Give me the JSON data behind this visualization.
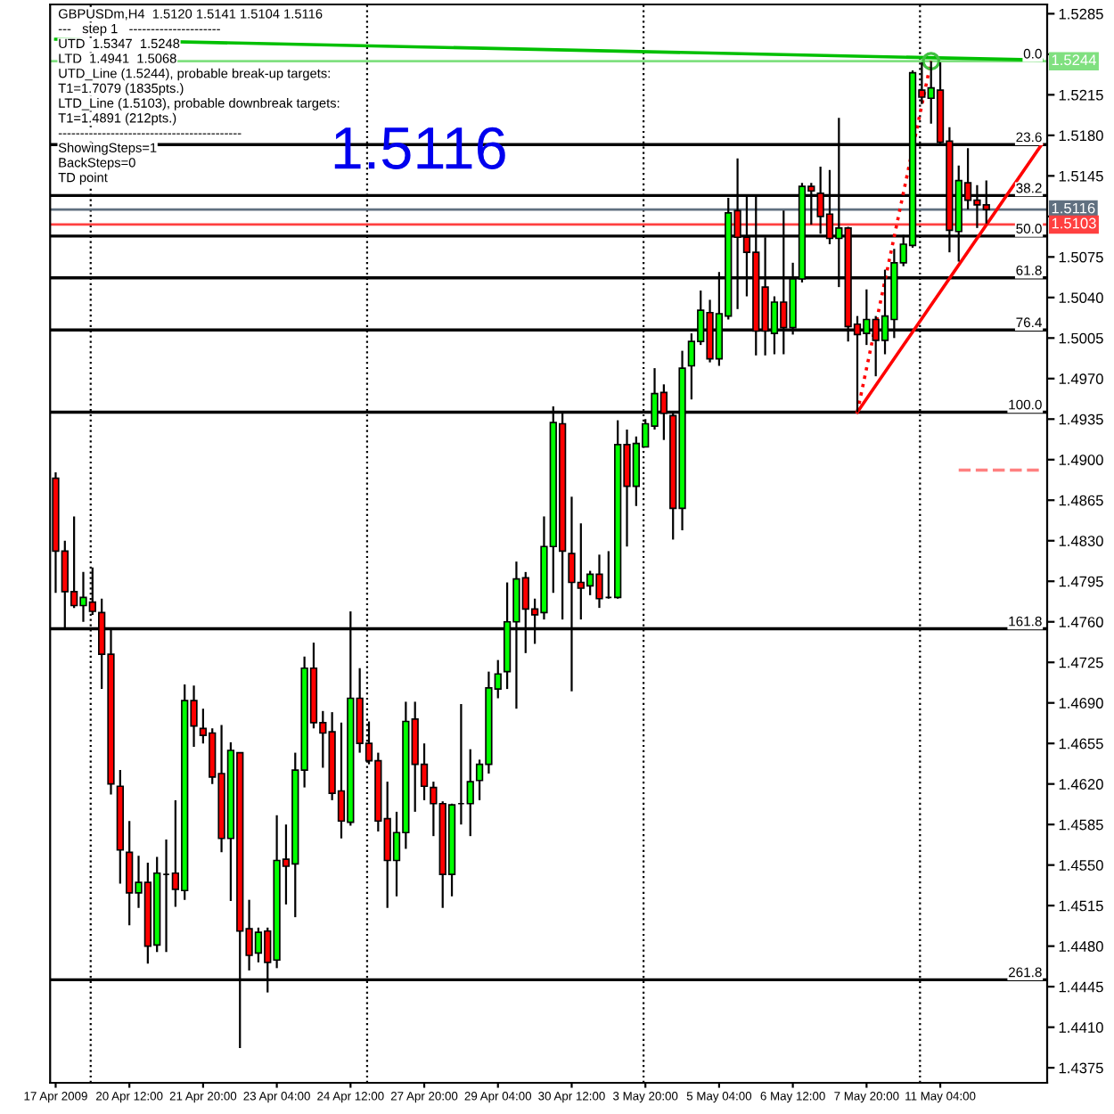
{
  "chart_data": {
    "type": "candlestick",
    "categories": [
      "17 Apr 2009",
      null,
      null,
      null,
      null,
      null,
      null,
      null,
      "20 Apr 12:00",
      null,
      null,
      null,
      null,
      null,
      null,
      null,
      "21 Apr 20:00",
      null,
      null,
      null,
      null,
      null,
      null,
      null,
      "23 Apr 04:00",
      null,
      null,
      null,
      null,
      null,
      null,
      null,
      "24 Apr 12:00",
      null,
      null,
      null,
      null,
      null,
      null,
      null,
      "27 Apr 20:00",
      null,
      null,
      null,
      null,
      null,
      null,
      null,
      "29 Apr 04:00",
      null,
      null,
      null,
      null,
      null,
      null,
      null,
      "30 Apr 12:00",
      null,
      null,
      null,
      null,
      null,
      null,
      null,
      "3 May 20:00",
      null,
      null,
      null,
      null,
      null,
      null,
      null,
      "5 May 04:00",
      null,
      null,
      null,
      null,
      null,
      null,
      null,
      "6 May 12:00",
      null,
      null,
      null,
      null,
      null,
      null,
      null,
      "7 May 20:00",
      null,
      null,
      null,
      null,
      null,
      null,
      null,
      "11 May 04:00",
      null,
      null,
      null,
      null,
      null,
      null,
      null,
      null,
      null,
      null,
      null
    ],
    "ohlc": [
      [
        1.4884,
        1.4889,
        1.4785,
        1.4821
      ],
      [
        1.4821,
        1.483,
        1.4753,
        1.4786
      ],
      [
        1.4786,
        1.4851,
        1.4772,
        1.4774
      ],
      [
        1.4774,
        1.4803,
        1.476,
        1.4781
      ],
      [
        1.4777,
        1.4807,
        1.4766,
        1.4769
      ],
      [
        1.4768,
        1.478,
        1.4702,
        1.4732
      ],
      [
        1.4732,
        1.4755,
        1.4611,
        1.462
      ],
      [
        1.4618,
        1.4632,
        1.4534,
        1.4563
      ],
      [
        1.4561,
        1.4588,
        1.4498,
        1.4526
      ],
      [
        1.4526,
        1.4558,
        1.4513,
        1.4535
      ],
      [
        1.4535,
        1.4552,
        1.4465,
        1.448
      ],
      [
        1.4481,
        1.4557,
        1.4475,
        1.4543
      ],
      [
        1.4542,
        1.4572,
        1.4475,
        1.4542
      ],
      [
        1.4543,
        1.4606,
        1.4514,
        1.4529
      ],
      [
        1.4528,
        1.4706,
        1.452,
        1.4692
      ],
      [
        1.4692,
        1.4705,
        1.4652,
        1.467
      ],
      [
        1.4668,
        1.4685,
        1.4655,
        1.4662
      ],
      [
        1.4664,
        1.4668,
        1.462,
        1.4626
      ],
      [
        1.4629,
        1.4671,
        1.4561,
        1.4573
      ],
      [
        1.4573,
        1.4656,
        1.4519,
        1.4649
      ],
      [
        1.4647,
        1.4647,
        1.4392,
        1.4493
      ],
      [
        1.4495,
        1.452,
        1.4459,
        1.4472
      ],
      [
        1.4474,
        1.4496,
        1.4466,
        1.4492
      ],
      [
        1.4493,
        1.4496,
        1.444,
        1.4466
      ],
      [
        1.4468,
        1.4593,
        1.4461,
        1.4554
      ],
      [
        1.4555,
        1.4585,
        1.4516,
        1.4549
      ],
      [
        1.4551,
        1.4647,
        1.4505,
        1.4632
      ],
      [
        1.4632,
        1.473,
        1.4617,
        1.472
      ],
      [
        1.472,
        1.4742,
        1.4668,
        1.4673
      ],
      [
        1.4673,
        1.4683,
        1.4634,
        1.4664
      ],
      [
        1.4665,
        1.4682,
        1.4606,
        1.4612
      ],
      [
        1.4614,
        1.4673,
        1.4573,
        1.4588
      ],
      [
        1.4587,
        1.4769,
        1.4584,
        1.4694
      ],
      [
        1.4694,
        1.472,
        1.4647,
        1.4655
      ],
      [
        1.4655,
        1.4674,
        1.4637,
        1.464
      ],
      [
        1.464,
        1.4647,
        1.4579,
        1.4588
      ],
      [
        1.459,
        1.4622,
        1.4513,
        1.4554
      ],
      [
        1.4554,
        1.4596,
        1.4523,
        1.4578
      ],
      [
        1.4578,
        1.4691,
        1.4564,
        1.4674
      ],
      [
        1.4676,
        1.4691,
        1.4596,
        1.4637
      ],
      [
        1.4637,
        1.4655,
        1.4606,
        1.4618
      ],
      [
        1.4617,
        1.4622,
        1.4575,
        1.4603
      ],
      [
        1.4603,
        1.4605,
        1.4513,
        1.4542
      ],
      [
        1.4542,
        1.4603,
        1.4523,
        1.4602
      ],
      [
        1.4603,
        1.4689,
        1.4585,
        1.4603
      ],
      [
        1.4603,
        1.465,
        1.4575,
        1.4622
      ],
      [
        1.4623,
        1.4641,
        1.4606,
        1.4637
      ],
      [
        1.4637,
        1.4717,
        1.4629,
        1.4703
      ],
      [
        1.4702,
        1.4727,
        1.4694,
        1.4715
      ],
      [
        1.4717,
        1.4794,
        1.4702,
        1.476
      ],
      [
        1.476,
        1.4812,
        1.4685,
        1.4797
      ],
      [
        1.4798,
        1.4803,
        1.4733,
        1.4771
      ],
      [
        1.4771,
        1.478,
        1.4741,
        1.4766
      ],
      [
        1.4768,
        1.4851,
        1.4762,
        1.4825
      ],
      [
        1.4825,
        1.4946,
        1.4785,
        1.4932
      ],
      [
        1.4931,
        1.4941,
        1.4762,
        1.4821
      ],
      [
        1.4819,
        1.4868,
        1.47,
        1.4794
      ],
      [
        1.4794,
        1.4845,
        1.4762,
        1.4789
      ],
      [
        1.4791,
        1.4804,
        1.4783,
        1.4801
      ],
      [
        1.4801,
        1.4818,
        1.4772,
        1.478
      ],
      [
        1.4781,
        1.4821,
        1.478,
        1.4781
      ],
      [
        1.4781,
        1.4934,
        1.478,
        1.4913
      ],
      [
        1.4913,
        1.4926,
        1.4825,
        1.4877
      ],
      [
        1.4877,
        1.492,
        1.486,
        1.4914
      ],
      [
        1.4911,
        1.4935,
        1.4911,
        1.4931
      ],
      [
        1.4929,
        1.4979,
        1.4926,
        1.4957
      ],
      [
        1.4958,
        1.4965,
        1.4917,
        1.494
      ],
      [
        1.4938,
        1.494,
        1.4831,
        1.4858
      ],
      [
        1.4858,
        1.4994,
        1.4839,
        1.4979
      ],
      [
        1.4981,
        1.5009,
        1.4952,
        1.5002
      ],
      [
        1.5002,
        1.5046,
        1.4999,
        1.5029
      ],
      [
        1.5027,
        1.5038,
        1.4984,
        1.4987
      ],
      [
        1.4987,
        1.5062,
        1.4981,
        1.5026
      ],
      [
        1.5024,
        1.5126,
        1.5021,
        1.5113
      ],
      [
        1.5115,
        1.516,
        1.503,
        1.5092
      ],
      [
        1.5092,
        1.5127,
        1.5041,
        1.5079
      ],
      [
        1.5079,
        1.5127,
        1.499,
        1.5011
      ],
      [
        1.5049,
        1.5092,
        1.499,
        1.5011
      ],
      [
        1.5009,
        1.5041,
        1.4991,
        1.5036
      ],
      [
        1.5036,
        1.5115,
        1.4991,
        1.5014
      ],
      [
        1.5014,
        1.507,
        1.5008,
        1.5056
      ],
      [
        1.5056,
        1.5139,
        1.5053,
        1.5136
      ],
      [
        1.5136,
        1.5139,
        1.5103,
        1.5132
      ],
      [
        1.513,
        1.5153,
        1.5095,
        1.511
      ],
      [
        1.5112,
        1.515,
        1.5086,
        1.5091
      ],
      [
        1.5091,
        1.5195,
        1.5049,
        1.51
      ],
      [
        1.51,
        1.5101,
        1.5002,
        1.5015
      ],
      [
        1.5017,
        1.5024,
        1.4941,
        1.5008
      ],
      [
        1.5009,
        1.5047,
        1.4999,
        1.5021
      ],
      [
        1.5021,
        1.5024,
        1.4972,
        1.5003
      ],
      [
        1.5003,
        1.5064,
        1.4991,
        1.5024
      ],
      [
        1.5021,
        1.5082,
        1.5005,
        1.507
      ],
      [
        1.507,
        1.5094,
        1.5067,
        1.5086
      ],
      [
        1.5085,
        1.5236,
        1.5083,
        1.5234
      ],
      [
        1.5219,
        1.5243,
        1.5207,
        1.5213
      ],
      [
        1.5212,
        1.5244,
        1.519,
        1.5221
      ],
      [
        1.5219,
        1.5243,
        1.5172,
        1.5174
      ],
      [
        1.5175,
        1.5187,
        1.5079,
        1.5098
      ],
      [
        1.5097,
        1.5154,
        1.5071,
        1.5141
      ],
      [
        1.5139,
        1.5169,
        1.5116,
        1.5124
      ],
      [
        1.5124,
        1.5137,
        1.51,
        1.512
      ],
      [
        1.512,
        1.5141,
        1.5104,
        1.5116
      ],
      null,
      null,
      null,
      null,
      null,
      null
    ],
    "colors": [
      "#ff0000",
      "#ff0000",
      "#ff0000",
      "#00ff00",
      "#ff0000",
      "#ff0000",
      "#ff0000",
      "#ff0000",
      "#ff0000",
      "#00ff00",
      "#ff0000",
      "#00ff00",
      "#000000",
      "#ff0000",
      "#00ff00",
      "#ff0000",
      "#ff0000",
      "#ff0000",
      "#ff0000",
      "#00ff00",
      "#ff0000",
      "#ff0000",
      "#00ff00",
      "#ff0000",
      "#00ff00",
      "#ff0000",
      "#00ff00",
      "#00ff00",
      "#ff0000",
      "#ff0000",
      "#ff0000",
      "#ff0000",
      "#00ff00",
      "#ff0000",
      "#ff0000",
      "#ff0000",
      "#ff0000",
      "#00ff00",
      "#00ff00",
      "#ff0000",
      "#ff0000",
      "#ff0000",
      "#ff0000",
      "#00ff00",
      "#000000",
      "#00ff00",
      "#00ff00",
      "#00ff00",
      "#00ff00",
      "#00ff00",
      "#00ff00",
      "#ff0000",
      "#ff0000",
      "#00ff00",
      "#00ff00",
      "#ff0000",
      "#ff0000",
      "#ff0000",
      "#00ff00",
      "#ff0000",
      "#000000",
      "#00ff00",
      "#ff0000",
      "#00ff00",
      "#00ff00",
      "#00ff00",
      "#ff0000",
      "#ff0000",
      "#00ff00",
      "#00ff00",
      "#00ff00",
      "#ff0000",
      "#00ff00",
      "#00ff00",
      "#ff0000",
      "#ff0000",
      "#ff0000",
      "#ff0000",
      "#00ff00",
      "#ff0000",
      "#00ff00",
      "#00ff00",
      "#ff0000",
      "#ff0000",
      "#ff0000",
      "#00ff00",
      "#ff0000",
      "#ff0000",
      "#00ff00",
      "#ff0000",
      "#00ff00",
      "#00ff00",
      "#00ff00",
      "#00ff00",
      "#ff0000",
      "#00ff00",
      "#ff0000",
      "#ff0000",
      "#00ff00",
      "#ff0000",
      "#ff0000",
      "#ff0000",
      null,
      null,
      null,
      null,
      null,
      null
    ],
    "series": [
      {
        "type": "line",
        "color": "#00c000",
        "line_style": "solid",
        "values": [
          1.5263,
          null,
          null,
          null,
          null,
          null,
          null,
          null,
          null,
          null,
          null,
          null,
          null,
          null,
          null,
          null,
          null,
          null,
          null,
          null,
          null,
          null,
          null,
          null,
          null,
          null,
          null,
          null,
          null,
          null,
          null,
          null,
          null,
          null,
          null,
          null,
          null,
          null,
          null,
          null,
          null,
          null,
          null,
          null,
          null,
          null,
          null,
          null,
          null,
          null,
          null,
          null,
          null,
          null,
          null,
          null,
          null,
          null,
          null,
          null,
          null,
          null,
          null,
          null,
          null,
          null,
          null,
          null,
          null,
          null,
          null,
          null,
          null,
          null,
          null,
          null,
          null,
          null,
          null,
          null,
          null,
          null,
          null,
          null,
          null,
          null,
          null,
          null,
          null,
          null,
          null,
          null,
          null,
          null,
          null,
          null,
          null,
          null,
          null,
          null,
          null,
          null,
          null,
          null,
          null,
          null,
          null,
          1.5245
        ]
      },
      {
        "type": "line",
        "color": "#ff0000",
        "line_style": "solid",
        "values": [
          null,
          null,
          null,
          null,
          null,
          null,
          null,
          null,
          null,
          null,
          null,
          null,
          null,
          null,
          null,
          null,
          null,
          null,
          null,
          null,
          null,
          null,
          null,
          null,
          null,
          null,
          null,
          null,
          null,
          null,
          null,
          null,
          null,
          null,
          null,
          null,
          null,
          null,
          null,
          null,
          null,
          null,
          null,
          null,
          null,
          null,
          null,
          null,
          null,
          null,
          null,
          null,
          null,
          null,
          null,
          null,
          null,
          null,
          null,
          null,
          null,
          null,
          null,
          null,
          null,
          null,
          null,
          null,
          null,
          null,
          null,
          null,
          null,
          null,
          null,
          null,
          null,
          null,
          null,
          null,
          null,
          null,
          null,
          null,
          null,
          null,
          null,
          1.4941,
          null,
          null,
          null,
          null,
          null,
          null,
          null,
          null,
          null,
          null,
          null,
          null,
          null,
          null,
          null,
          null,
          null,
          null,
          null,
          1.5172
        ]
      },
      {
        "type": "line",
        "color": "#ff0000",
        "line_style": "dotted",
        "values": [
          null,
          null,
          null,
          null,
          null,
          null,
          null,
          null,
          null,
          null,
          null,
          null,
          null,
          null,
          null,
          null,
          null,
          null,
          null,
          null,
          null,
          null,
          null,
          null,
          null,
          null,
          null,
          null,
          null,
          null,
          null,
          null,
          null,
          null,
          null,
          null,
          null,
          null,
          null,
          null,
          null,
          null,
          null,
          null,
          null,
          null,
          null,
          null,
          null,
          null,
          null,
          null,
          null,
          null,
          null,
          null,
          null,
          null,
          null,
          null,
          null,
          null,
          null,
          null,
          null,
          null,
          null,
          null,
          null,
          null,
          null,
          null,
          null,
          null,
          null,
          null,
          null,
          null,
          null,
          null,
          null,
          null,
          null,
          null,
          null,
          null,
          null,
          1.4941,
          null,
          null,
          null,
          null,
          null,
          null,
          null,
          1.5244,
          null,
          null,
          null,
          null,
          null,
          null,
          null,
          null,
          null,
          null,
          null,
          null
        ]
      },
      {
        "type": "line",
        "color": "#ff8080",
        "line_style": "dashed",
        "values": [
          null,
          null,
          null,
          null,
          null,
          null,
          null,
          null,
          null,
          null,
          null,
          null,
          null,
          null,
          null,
          null,
          null,
          null,
          null,
          null,
          null,
          null,
          null,
          null,
          null,
          null,
          null,
          null,
          null,
          null,
          null,
          null,
          null,
          null,
          null,
          null,
          null,
          null,
          null,
          null,
          null,
          null,
          null,
          null,
          null,
          null,
          null,
          null,
          null,
          null,
          null,
          null,
          null,
          null,
          null,
          null,
          null,
          null,
          null,
          null,
          null,
          null,
          null,
          null,
          null,
          null,
          null,
          null,
          null,
          null,
          null,
          null,
          null,
          null,
          null,
          null,
          null,
          null,
          null,
          null,
          null,
          null,
          null,
          null,
          null,
          null,
          null,
          null,
          null,
          null,
          null,
          null,
          null,
          null,
          null,
          null,
          null,
          null,
          1.4891,
          null,
          null,
          null,
          null,
          null,
          null,
          null,
          null,
          1.4891
        ]
      },
      {
        "type": "scatter",
        "color": "#40c040",
        "marker": "circle",
        "values": [
          null,
          null,
          null,
          null,
          null,
          null,
          null,
          null,
          null,
          null,
          null,
          null,
          null,
          null,
          null,
          null,
          null,
          null,
          null,
          null,
          null,
          null,
          null,
          null,
          null,
          null,
          null,
          null,
          null,
          null,
          null,
          null,
          null,
          null,
          null,
          null,
          null,
          null,
          null,
          null,
          null,
          null,
          null,
          null,
          null,
          null,
          null,
          null,
          null,
          null,
          null,
          null,
          null,
          null,
          null,
          null,
          null,
          null,
          null,
          null,
          null,
          null,
          null,
          null,
          null,
          null,
          null,
          null,
          null,
          null,
          null,
          null,
          null,
          null,
          null,
          null,
          null,
          null,
          null,
          null,
          null,
          null,
          null,
          null,
          null,
          null,
          null,
          null,
          null,
          null,
          null,
          null,
          null,
          null,
          null,
          1.5244,
          null,
          null,
          null,
          null,
          null,
          null,
          null,
          null,
          null,
          null,
          null,
          null
        ]
      }
    ],
    "ref_lines": [
      {
        "axis": "y",
        "value": 1.5244,
        "label": "1.5244",
        "color": "#80e080"
      },
      {
        "axis": "y",
        "value": 1.5116,
        "label": "1.5116",
        "color": "#607080"
      },
      {
        "axis": "y",
        "value": 1.5103,
        "label": "1.5103",
        "color": "#ff4040"
      },
      {
        "axis": "y",
        "value": 1.5172,
        "color": "#000000"
      },
      {
        "axis": "y",
        "value": 1.5128,
        "color": "#000000"
      },
      {
        "axis": "y",
        "value": 1.5093,
        "color": "#000000"
      },
      {
        "axis": "y",
        "value": 1.5057,
        "color": "#000000"
      },
      {
        "axis": "y",
        "value": 1.5012,
        "color": "#000000"
      },
      {
        "axis": "y",
        "value": 1.4941,
        "color": "#000000"
      },
      {
        "axis": "y",
        "value": 1.4754,
        "color": "#000000"
      },
      {
        "axis": "y",
        "value": 1.4451,
        "color": "#000000"
      }
    ],
    "ylim": [
      1.4362,
      1.5293
    ],
    "yticks": [
      1.5285,
      {
        "value": 1.525,
        "label": null
      },
      1.5215,
      {
        "value": 1.518,
        "label": "1.5180"
      },
      1.5145,
      {
        "value": 1.511,
        "label": null
      },
      1.5075,
      {
        "value": 1.504,
        "label": "1.5040"
      },
      1.5005,
      {
        "value": 1.497,
        "label": "1.4970"
      },
      1.4935,
      {
        "value": 1.49,
        "label": "1.4900"
      },
      1.4865,
      {
        "value": 1.483,
        "label": "1.4830"
      },
      1.4795,
      {
        "value": 1.476,
        "label": "1.4760"
      },
      1.4725,
      {
        "value": 1.469,
        "label": "1.4690"
      },
      1.4655,
      {
        "value": 1.462,
        "label": "1.4620"
      },
      1.4585,
      {
        "value": 1.455,
        "label": "1.4550"
      },
      1.4515,
      {
        "value": 1.448,
        "label": "1.4480"
      },
      1.4445,
      {
        "value": 1.441,
        "label": "1.4410"
      },
      1.4375
    ],
    "grid": false,
    "legend": false,
    "annotations": [
      "GBPUSDm,H4  1.5120 1.5141 1.5104 1.5116",
      "---   step 1   ---------------------",
      "UTD  1.5347  1.5248",
      "LTD  1.4941  1.5068",
      "UTD_Line (1.5244), probable break-up targets:",
      "T1=1.7079 (1835pts.)",
      "LTD_Line (1.5103), probable downbreak targets:",
      "T1=1.4891 (212pts.)",
      "------------------------------------------",
      "ShowingSteps=1",
      "BackSteps=0",
      "TD point",
      "1.5116",
      {
        "text": "0.0",
        "y": 1.5244
      },
      {
        "text": "23.6",
        "y": 1.5172
      },
      {
        "text": "38.2",
        "y": 1.5128
      },
      {
        "text": "50.0",
        "y": 1.5093
      },
      {
        "text": "61.8",
        "y": 1.5057
      },
      {
        "text": "76.4",
        "y": 1.5012
      },
      {
        "text": "100.0",
        "y": 1.4941
      },
      {
        "text": "161.8",
        "y": 1.4754
      },
      {
        "text": "261.8",
        "y": 1.4451
      }
    ]
  }
}
